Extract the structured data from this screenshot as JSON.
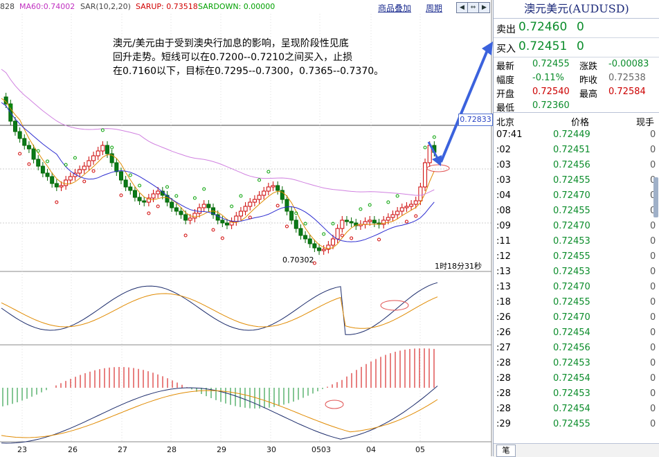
{
  "indicators": {
    "ma_cut": "828",
    "ma60": "MA60:0.74002",
    "sar": "SAR(10,2,20)",
    "sarup": "SARUP: 0.73518",
    "sardown": "SARDOWN: 0.00000",
    "colors": {
      "ma": "#c030c0",
      "sarup": "#d00000",
      "sardown": "#00a000",
      "label": "#444444"
    }
  },
  "toolbar": {
    "overlay_label": "商品叠加",
    "period_label": "周期",
    "nav_icons": [
      "prev-icon",
      "sync-icon",
      "next-icon",
      "zoom-icon"
    ]
  },
  "annotation": {
    "lines": [
      "澳元/美元由于受到澳央行加息的影响，呈现阶段性见底",
      "回升走势。短线可以在0.7200--0.7210之间买入，止损",
      "在0.7160以下，目标在0.7295--0.7300，0.7365--0.7370。"
    ]
  },
  "chart": {
    "current_price_tag": "0.72833",
    "low_label": "0.70302",
    "countdown": "1时18分31秒",
    "x_labels": [
      "23",
      "26",
      "27",
      "28",
      "29",
      "30",
      "0503",
      "04",
      "05"
    ]
  },
  "quote": {
    "title": "澳元美元(AUDUSD)",
    "sell_label": "卖出",
    "sell_price": "0.72460",
    "sell_vol": "0",
    "buy_label": "买入",
    "buy_price": "0.72451",
    "buy_vol": "0",
    "stats": [
      {
        "l1": "最新",
        "v1": "0.72455",
        "c1": "green",
        "l2": "涨跌",
        "v2": "-0.00083",
        "c2": "green"
      },
      {
        "l1": "幅度",
        "v1": "-0.11%",
        "c1": "green",
        "l2": "昨收",
        "v2": "0.72538",
        "c2": "gray"
      },
      {
        "l1": "开盘",
        "v1": "0.72540",
        "c1": "red",
        "l2": "最高",
        "v2": "0.72584",
        "c2": "red"
      },
      {
        "l1": "最低",
        "v1": "0.72360",
        "c1": "green",
        "l2": "",
        "v2": "",
        "c2": "gray"
      }
    ],
    "ticks_header": {
      "time": "北京",
      "price": "价格",
      "vol": "现手"
    },
    "ticks": [
      {
        "time": "07:41",
        "price": "0.72449",
        "vol": "0"
      },
      {
        "time": ":02",
        "price": "0.72451",
        "vol": "0"
      },
      {
        "time": ":03",
        "price": "0.72456",
        "vol": "0"
      },
      {
        "time": ":03",
        "price": "0.72455",
        "vol": "0"
      },
      {
        "time": ":04",
        "price": "0.72470",
        "vol": "0"
      },
      {
        "time": ":08",
        "price": "0.72455",
        "vol": "0"
      },
      {
        "time": ":09",
        "price": "0.72470",
        "vol": "0"
      },
      {
        "time": ":11",
        "price": "0.72453",
        "vol": "0"
      },
      {
        "time": ":12",
        "price": "0.72455",
        "vol": "0"
      },
      {
        "time": ":13",
        "price": "0.72453",
        "vol": "0"
      },
      {
        "time": ":13",
        "price": "0.72470",
        "vol": "0"
      },
      {
        "time": ":18",
        "price": "0.72455",
        "vol": "0"
      },
      {
        "time": ":26",
        "price": "0.72470",
        "vol": "0"
      },
      {
        "time": ":26",
        "price": "0.72454",
        "vol": "0"
      },
      {
        "time": ":27",
        "price": "0.72456",
        "vol": "0"
      },
      {
        "time": ":28",
        "price": "0.72453",
        "vol": "0"
      },
      {
        "time": ":28",
        "price": "0.72454",
        "vol": "0"
      },
      {
        "time": ":28",
        "price": "0.72453",
        "vol": "0"
      },
      {
        "time": ":28",
        "price": "0.72454",
        "vol": "0"
      },
      {
        "time": ":29",
        "price": "0.72455",
        "vol": "0"
      }
    ],
    "bottom_tab": "笔"
  }
}
